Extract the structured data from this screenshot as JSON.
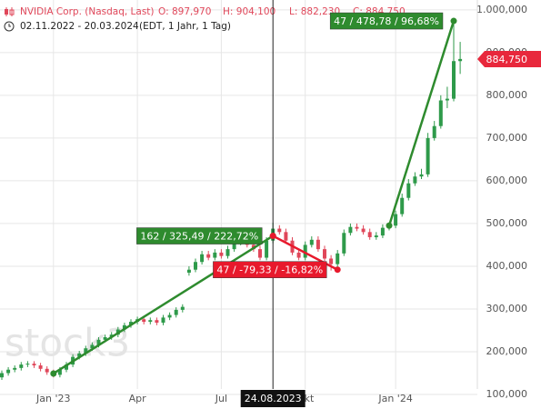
{
  "header": {
    "instrument": "NVIDIA Corp. (Nasdaq, Last)",
    "open": "O: 897,970",
    "high": "H: 904,100",
    "low": "L: 882,230",
    "close": "C: 884,750",
    "range": "02.11.2022 - 20.03.2024",
    "info": "(EDT, 1 Jahr, 1 Tag)"
  },
  "chart_data": {
    "type": "candlestick",
    "watermark": "stock3",
    "categories": [
      null,
      null,
      null,
      null,
      null,
      null,
      null,
      null,
      "Jan '23",
      null,
      null,
      null,
      null,
      null,
      null,
      null,
      null,
      null,
      null,
      null,
      null,
      "Apr",
      null,
      null,
      null,
      null,
      null,
      null,
      null,
      null,
      null,
      null,
      null,
      null,
      "Jul",
      null,
      null,
      null,
      null,
      null,
      null,
      null,
      null,
      null,
      null,
      null,
      null,
      "Okt",
      null,
      null,
      null,
      null,
      null,
      null,
      null,
      null,
      null,
      null,
      null,
      null,
      null,
      "Jan '24",
      null,
      null,
      null,
      null,
      null,
      null,
      null,
      null,
      null,
      null
    ],
    "open": [
      140,
      150,
      158,
      162,
      170,
      172,
      168,
      160,
      152,
      146,
      158,
      170,
      188,
      196,
      208,
      216,
      228,
      234,
      240,
      252,
      262,
      270,
      276,
      270,
      274,
      268,
      280,
      286,
      298,
      385,
      392,
      410,
      428,
      420,
      432,
      424,
      440,
      455,
      462,
      450,
      440,
      420,
      460,
      488,
      480,
      460,
      432,
      420,
      450,
      462,
      440,
      418,
      405,
      430,
      478,
      492,
      488,
      480,
      468,
      472,
      490,
      495,
      522,
      560,
      594,
      610,
      615,
      700,
      728,
      788,
      792,
      880
    ],
    "high": [
      156,
      164,
      168,
      176,
      178,
      178,
      174,
      166,
      158,
      164,
      176,
      194,
      202,
      214,
      222,
      234,
      240,
      246,
      258,
      268,
      276,
      282,
      282,
      280,
      280,
      286,
      292,
      304,
      311,
      400,
      418,
      436,
      436,
      440,
      440,
      448,
      463,
      470,
      470,
      458,
      448,
      468,
      502,
      496,
      488,
      468,
      440,
      458,
      470,
      470,
      448,
      426,
      438,
      486,
      500,
      500,
      496,
      488,
      480,
      498,
      503,
      530,
      570,
      604,
      620,
      628,
      712,
      740,
      800,
      820,
      974,
      925
    ],
    "low": [
      134,
      144,
      152,
      156,
      164,
      162,
      154,
      146,
      140,
      140,
      152,
      164,
      182,
      190,
      202,
      210,
      222,
      228,
      234,
      246,
      256,
      264,
      264,
      264,
      262,
      262,
      274,
      280,
      292,
      378,
      386,
      404,
      414,
      414,
      418,
      418,
      434,
      449,
      444,
      434,
      414,
      414,
      454,
      474,
      454,
      426,
      414,
      414,
      444,
      434,
      412,
      390,
      399,
      424,
      472,
      482,
      474,
      462,
      462,
      466,
      484,
      489,
      516,
      554,
      588,
      604,
      609,
      694,
      722,
      770,
      786,
      850
    ],
    "close": [
      150,
      158,
      162,
      170,
      172,
      168,
      160,
      152,
      146,
      158,
      170,
      188,
      196,
      208,
      216,
      228,
      234,
      240,
      252,
      262,
      270,
      276,
      270,
      274,
      268,
      280,
      286,
      298,
      305,
      392,
      410,
      428,
      420,
      432,
      424,
      440,
      455,
      462,
      450,
      440,
      420,
      460,
      488,
      480,
      460,
      432,
      420,
      450,
      462,
      440,
      418,
      405,
      430,
      478,
      492,
      488,
      480,
      468,
      472,
      490,
      495,
      522,
      560,
      594,
      610,
      615,
      700,
      728,
      788,
      792,
      880,
      885
    ],
    "up_color": "#2e9a4a",
    "down_color": "#e0475a",
    "ylim": [
      66,
      1023
    ],
    "yticks": [
      {
        "value": 100,
        "label": "100,000"
      },
      {
        "value": 200,
        "label": "200,000"
      },
      {
        "value": 300,
        "label": "300,000"
      },
      {
        "value": 400,
        "label": "400,000"
      },
      {
        "value": 500,
        "label": "500,000"
      },
      {
        "value": 600,
        "label": "600,000"
      },
      {
        "value": 700,
        "label": "700,000"
      },
      {
        "value": 800,
        "label": "800,000"
      },
      {
        "value": 900,
        "label": "900,000"
      },
      {
        "value": 1000,
        "label": "1.000,000"
      }
    ],
    "grid": true,
    "last_price": {
      "value": 884.75,
      "label": "884,750",
      "color": "#e8283c"
    },
    "crosshair": {
      "index": 42,
      "label": "24.08.2023"
    },
    "trendlines": [
      {
        "x": [
          8,
          42
        ],
        "y": [
          149,
          471
        ],
        "label": "162 / 325,49 / 222,72%",
        "color": "#2e8b2e"
      },
      {
        "x": [
          42,
          52
        ],
        "y": [
          471,
          392
        ],
        "label": "47 / -79,33 / -16,82%",
        "color": "#e8192c"
      },
      {
        "x": [
          60,
          70
        ],
        "y": [
          495,
          974
        ],
        "label": "47 / 478,78 / 96,68%",
        "color": "#2e8b2e"
      }
    ]
  }
}
